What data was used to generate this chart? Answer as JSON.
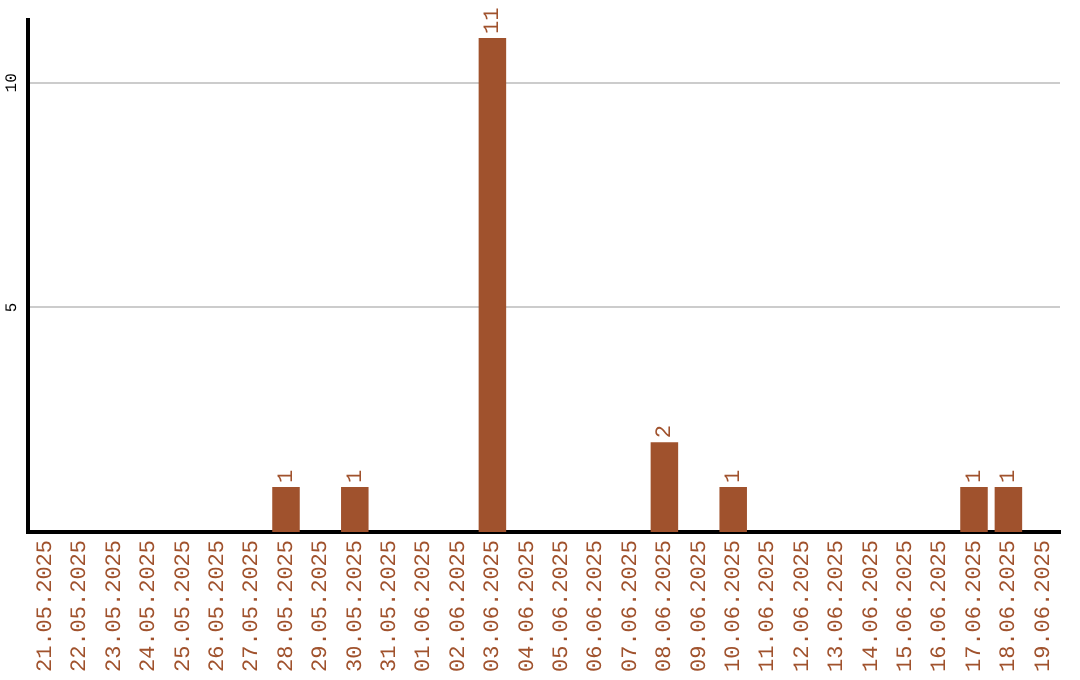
{
  "chart_data": {
    "type": "bar",
    "categories": [
      "21.05.2025",
      "22.05.2025",
      "23.05.2025",
      "24.05.2025",
      "25.05.2025",
      "26.05.2025",
      "27.05.2025",
      "28.05.2025",
      "29.05.2025",
      "30.05.2025",
      "31.05.2025",
      "01.06.2025",
      "02.06.2025",
      "03.06.2025",
      "04.06.2025",
      "05.06.2025",
      "06.06.2025",
      "07.06.2025",
      "08.06.2025",
      "09.06.2025",
      "10.06.2025",
      "11.06.2025",
      "12.06.2025",
      "13.06.2025",
      "14.06.2025",
      "15.06.2025",
      "16.06.2025",
      "17.06.2025",
      "18.06.2025",
      "19.06.2025"
    ],
    "values": [
      0,
      0,
      0,
      0,
      0,
      0,
      0,
      1,
      0,
      1,
      0,
      0,
      0,
      11,
      0,
      0,
      0,
      0,
      2,
      0,
      1,
      0,
      0,
      0,
      0,
      0,
      0,
      1,
      1,
      0
    ],
    "value_labels": [
      null,
      null,
      null,
      null,
      null,
      null,
      null,
      "1",
      null,
      "1",
      null,
      null,
      null,
      "11",
      null,
      null,
      null,
      null,
      "2",
      null,
      "1",
      null,
      null,
      null,
      null,
      null,
      null,
      "1",
      "1",
      null
    ],
    "color": "#a0522d",
    "ylim": [
      0,
      11.4
    ],
    "yticks": [
      5,
      10
    ],
    "grid": "y",
    "legend": false
  }
}
